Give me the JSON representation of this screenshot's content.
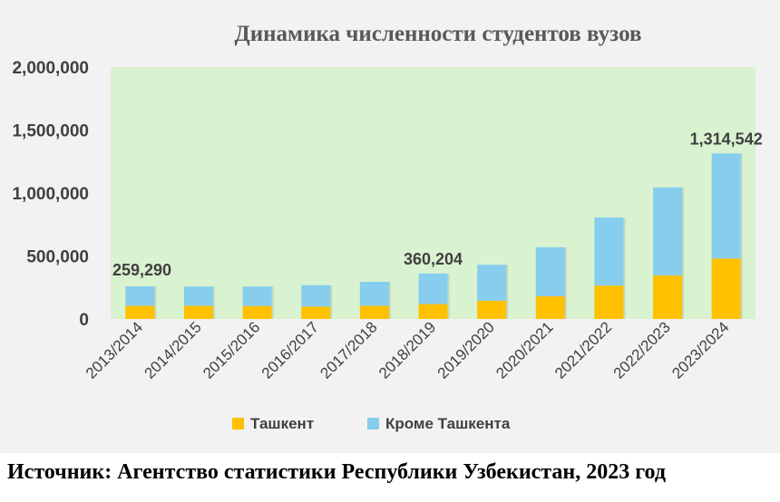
{
  "chart_data": {
    "type": "bar",
    "stacked": true,
    "title": "Динамика численности студентов вузов",
    "categories": [
      "2013/2014",
      "2014/2015",
      "2015/2016",
      "2016/2017",
      "2017/2018",
      "2018/2019",
      "2019/2020",
      "2020/2021",
      "2021/2022",
      "2022/2023",
      "2023/2024"
    ],
    "series": [
      {
        "name": "Ташкент",
        "color": "#ffc000",
        "values": [
          105000,
          105000,
          103000,
          98000,
          105000,
          118000,
          145000,
          180000,
          265000,
          345000,
          480000
        ]
      },
      {
        "name": "Кроме Ташкента",
        "color": "#87cdee",
        "values": [
          154290,
          153000,
          155000,
          170000,
          190000,
          242204,
          285000,
          390000,
          540000,
          700000,
          834542
        ]
      }
    ],
    "ylim": [
      0,
      2000000
    ],
    "yticks": [
      {
        "value": 0,
        "label": "0"
      },
      {
        "value": 500000,
        "label": "500,000"
      },
      {
        "value": 1000000,
        "label": "1,000,000"
      },
      {
        "value": 1500000,
        "label": "1,500,000"
      },
      {
        "value": 2000000,
        "label": "2,000,000"
      }
    ],
    "annotations": [
      {
        "category_index": 0,
        "text": "259,290"
      },
      {
        "category_index": 5,
        "text": "360,204"
      },
      {
        "category_index": 10,
        "text": "1,314,542"
      }
    ],
    "legend_position": "bottom",
    "plot_background": "#d9f2d0",
    "grid": false
  },
  "source_note": "Источник: Агентство статистики Республики Узбекистан, 2023 год"
}
